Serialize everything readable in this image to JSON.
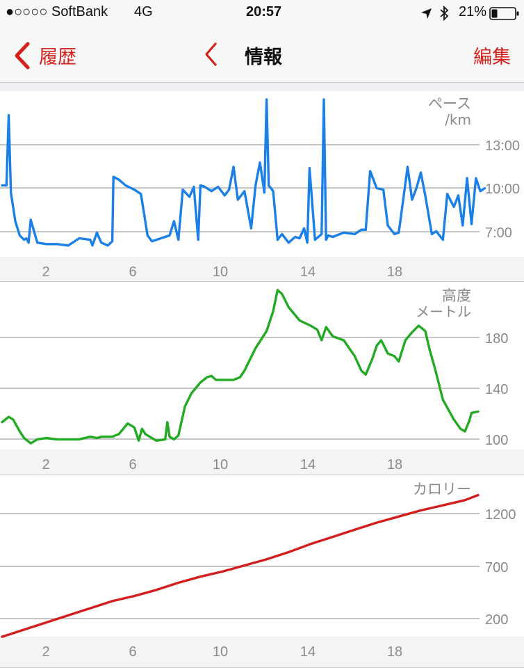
{
  "status_bar": {
    "carrier": "●○○○○ SoftBank",
    "network": "4G",
    "time": "20:57",
    "battery": "21%"
  },
  "nav": {
    "back_label": "履歴",
    "title": "情報",
    "edit_label": "編集"
  },
  "colors": {
    "accent": "#d5201c",
    "pace": "#1a7fe6",
    "elevation": "#22aa22",
    "calories": "#d41e1e"
  },
  "chart_data": [
    {
      "type": "line",
      "label": "ペース",
      "unit": "/km",
      "x_ticks": [
        "2",
        "6",
        "10",
        "14",
        "18"
      ],
      "y_ticks": [
        "13:00",
        "10:00",
        "7:00"
      ],
      "xlim": [
        0,
        22
      ],
      "ylim_minutes": [
        5.5,
        16
      ],
      "series": [
        {
          "x": [
            0,
            0.2,
            0.3,
            0.4,
            0.6,
            0.8,
            1.0,
            1.1,
            1.2,
            1.3,
            1.6,
            2.0,
            2.5,
            3.0,
            3.2,
            3.5,
            4.0,
            4.1,
            4.3,
            4.5,
            4.8,
            5.0,
            5.05,
            5.3,
            5.6,
            6.0,
            6.3,
            6.6,
            6.8,
            7.0,
            7.2,
            7.6,
            7.8,
            8.0,
            8.2,
            8.5,
            8.7,
            8.9,
            9.0,
            9.2,
            9.5,
            9.8,
            10.1,
            10.3,
            10.5,
            10.7,
            11.0,
            11.3,
            11.5,
            11.7,
            11.9,
            12.0,
            12.1,
            12.3,
            12.5,
            12.7,
            13.0,
            13.3,
            13.5,
            13.7,
            13.85,
            13.95,
            14.2,
            14.5,
            14.6,
            14.7,
            14.8,
            15.0,
            15.5,
            16.0,
            16.3,
            16.5,
            16.7,
            17.0,
            17.3,
            17.5,
            17.8,
            18.0,
            18.2,
            18.4,
            18.6,
            18.8,
            19.0,
            19.2,
            19.5,
            19.7,
            20.0,
            20.2,
            20.5,
            20.7,
            20.9,
            21.1,
            21.3,
            21.5,
            21.7,
            21.9
          ],
          "y": [
            10.0,
            10.0,
            14.9,
            9.5,
            7.5,
            6.5,
            6.2,
            6.3,
            6.0,
            7.6,
            6.0,
            5.9,
            5.9,
            5.8,
            6.0,
            6.3,
            6.2,
            5.8,
            6.7,
            6.0,
            5.8,
            6.1,
            10.6,
            10.4,
            10.0,
            9.7,
            9.4,
            6.5,
            6.1,
            6.2,
            6.3,
            6.5,
            7.5,
            6.2,
            9.7,
            9.2,
            9.9,
            6.2,
            10.0,
            9.9,
            9.6,
            9.9,
            9.3,
            9.7,
            11.3,
            9.0,
            9.6,
            7.0,
            10.0,
            11.6,
            9.5,
            16.0,
            10.0,
            9.6,
            6.2,
            6.6,
            6.0,
            6.4,
            6.3,
            7.0,
            6.0,
            11.2,
            6.2,
            6.6,
            16.0,
            6.2,
            6.5,
            6.4,
            6.7,
            6.6,
            6.9,
            6.9,
            11.0,
            9.8,
            9.7,
            7.2,
            6.6,
            6.7,
            9.0,
            11.3,
            9.0,
            9.8,
            10.9,
            9.3,
            6.6,
            6.8,
            6.2,
            9.4,
            8.5,
            9.3,
            7.2,
            10.5,
            7.3,
            10.5,
            9.6,
            9.8
          ]
        }
      ]
    },
    {
      "type": "line",
      "label": "高度",
      "unit": "メートル",
      "x_ticks": [
        "2",
        "6",
        "10",
        "14",
        "18"
      ],
      "y_ticks": [
        "180",
        "140",
        "100"
      ],
      "xlim": [
        0,
        22
      ],
      "ylim": [
        96,
        215
      ],
      "series": [
        {
          "x": [
            0,
            0.3,
            0.5,
            0.8,
            1.0,
            1.3,
            1.6,
            2.0,
            2.5,
            3.0,
            3.5,
            4.0,
            4.3,
            4.5,
            5.0,
            5.3,
            5.5,
            5.7,
            6.0,
            6.2,
            6.35,
            6.5,
            7.0,
            7.4,
            7.5,
            7.6,
            7.8,
            8.0,
            8.3,
            8.6,
            9.0,
            9.3,
            9.5,
            9.7,
            10.0,
            10.5,
            10.8,
            11.0,
            11.5,
            12.0,
            12.3,
            12.5,
            12.7,
            13.0,
            13.5,
            14.0,
            14.3,
            14.5,
            14.7,
            15.0,
            15.5,
            16.0,
            16.3,
            16.5,
            16.8,
            17.0,
            17.2,
            17.5,
            17.8,
            18.0,
            18.3,
            18.6,
            18.9,
            19.2,
            19.4,
            19.7,
            20.0,
            20.5,
            20.8,
            21.0,
            21.2,
            21.3,
            21.6
          ],
          "y": [
            113,
            117,
            115,
            106,
            101,
            97,
            100,
            101,
            100,
            100,
            100,
            102,
            101,
            102,
            102,
            104,
            108,
            112,
            109,
            99,
            108,
            104,
            99,
            100,
            113,
            102,
            100,
            103,
            125,
            135,
            143,
            147,
            148,
            145,
            145,
            145,
            147,
            152,
            169,
            182,
            197,
            213,
            210,
            200,
            190,
            186,
            183,
            175,
            185,
            178,
            175,
            163,
            152,
            149,
            161,
            171,
            175,
            165,
            163,
            159,
            175,
            181,
            186,
            182,
            168,
            150,
            130,
            115,
            108,
            106,
            114,
            120,
            121
          ]
        }
      ]
    },
    {
      "type": "line",
      "label": "カロリー",
      "x_ticks": [
        "2",
        "6",
        "10",
        "14",
        "18"
      ],
      "y_ticks": [
        "1200",
        "700",
        "200"
      ],
      "xlim": [
        0,
        22
      ],
      "ylim": [
        0,
        1570
      ],
      "series": [
        {
          "x": [
            0,
            1,
            2,
            3,
            4,
            5,
            6,
            7,
            8,
            9,
            10,
            11,
            12,
            13,
            14,
            15,
            16,
            17,
            18,
            19,
            20,
            21,
            21.6
          ],
          "y": [
            40,
            110,
            180,
            250,
            320,
            390,
            440,
            500,
            570,
            630,
            680,
            740,
            800,
            870,
            950,
            1020,
            1090,
            1160,
            1220,
            1280,
            1330,
            1380,
            1430
          ]
        }
      ]
    }
  ]
}
